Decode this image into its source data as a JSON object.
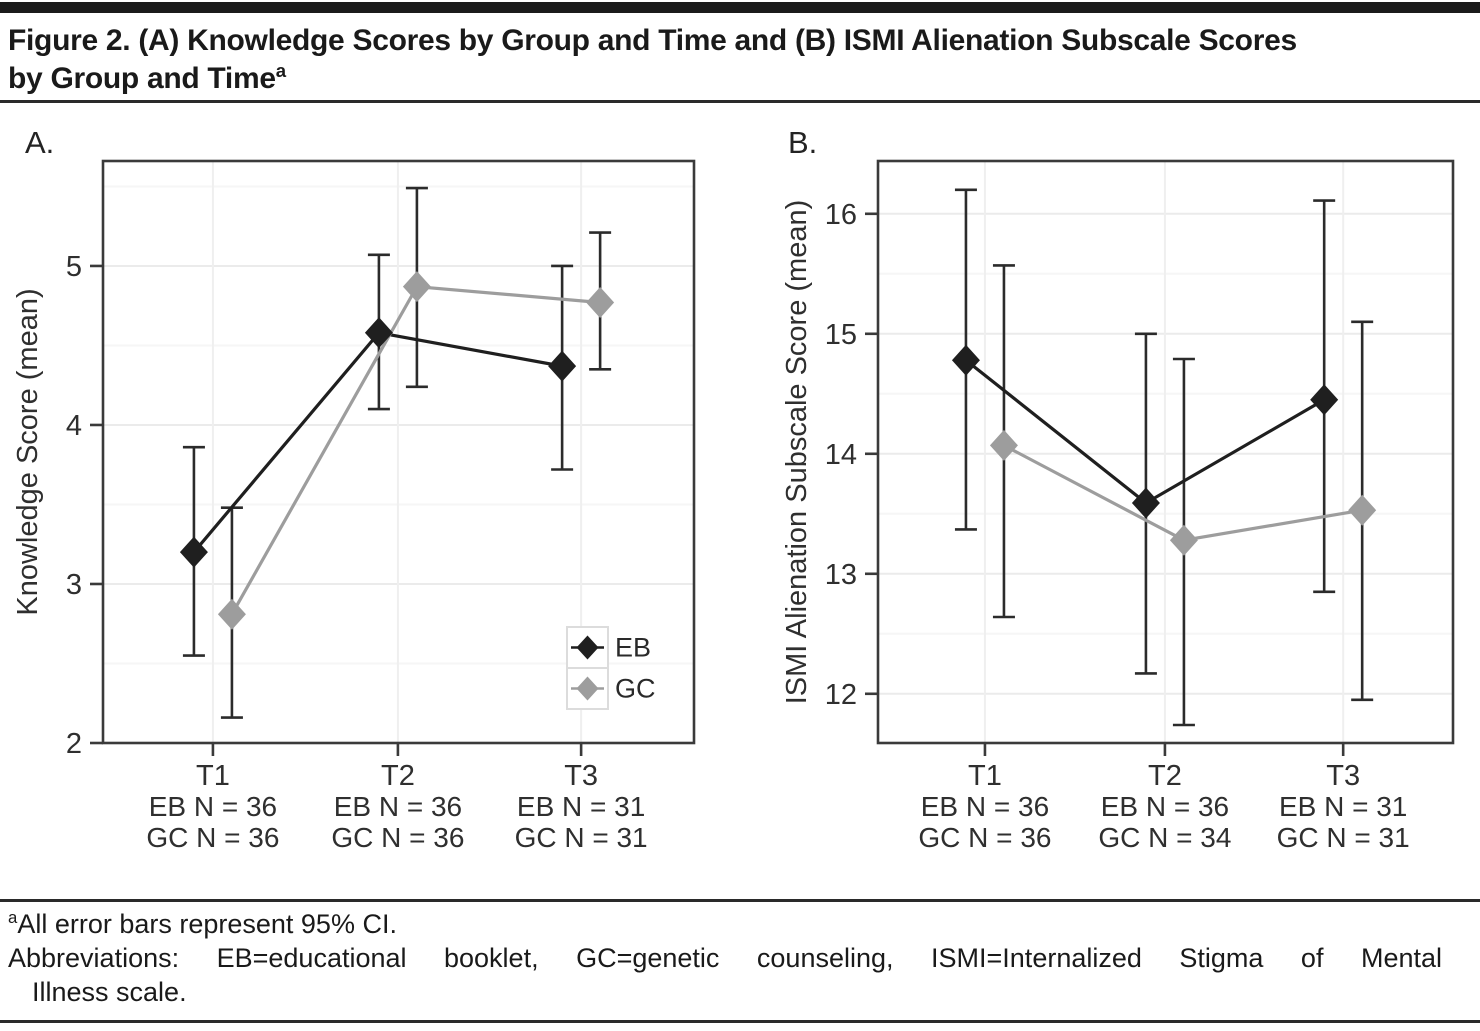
{
  "title": {
    "line1": "Figure 2. (A) Knowledge Scores by Group and Time and (B) ISMI Alienation Subscale Scores",
    "line2": "by Group and Time",
    "superscript": "a"
  },
  "legend": {
    "items": [
      {
        "label": "EB",
        "color": "#1f1f1f"
      },
      {
        "label": "GC",
        "color": "#9d9d9d"
      }
    ]
  },
  "colors": {
    "eb": "#1f1f1f",
    "gc": "#9d9d9d",
    "error_bar": "#2b2b2b",
    "plot_border": "#3a3a3a",
    "grid_major": "#ebebeb",
    "grid_minor": "#f6f6f6",
    "grid_vertical": "#efefef",
    "tick_text": "#2f2f2f"
  },
  "chart_data": [
    {
      "type": "line",
      "panel_label": "A.",
      "ylabel": "Knowledge Score (mean)",
      "categories": [
        "T1",
        "T2",
        "T3"
      ],
      "category_sublabels": [
        [
          "EB N = 36",
          "GC N = 36"
        ],
        [
          "EB N = 36",
          "GC N = 36"
        ],
        [
          "EB N = 31",
          "GC N = 31"
        ]
      ],
      "yticks": [
        2,
        3,
        4,
        5
      ],
      "ylim": [
        2.0,
        5.66
      ],
      "grid": true,
      "show_legend": true,
      "legend_position": "bottom-right-inside",
      "series": [
        {
          "name": "EB",
          "color": "#1f1f1f",
          "marker": "diamond",
          "values": [
            3.2,
            4.58,
            4.37
          ],
          "ci_low": [
            2.55,
            4.1,
            3.72
          ],
          "ci_high": [
            3.86,
            5.07,
            5.0
          ]
        },
        {
          "name": "GC",
          "color": "#9d9d9d",
          "marker": "diamond",
          "values": [
            2.81,
            4.87,
            4.77
          ],
          "ci_low": [
            2.16,
            4.24,
            4.35
          ],
          "ci_high": [
            3.48,
            5.49,
            5.21
          ]
        }
      ]
    },
    {
      "type": "line",
      "panel_label": "B.",
      "ylabel": "ISMI Alienation Subscale Score (mean)",
      "categories": [
        "T1",
        "T2",
        "T3"
      ],
      "category_sublabels": [
        [
          "EB N = 36",
          "GC N = 36"
        ],
        [
          "EB N = 36",
          "GC N = 34"
        ],
        [
          "EB N = 31",
          "GC N = 31"
        ]
      ],
      "yticks": [
        12,
        13,
        14,
        15,
        16
      ],
      "ylim": [
        11.59,
        16.44
      ],
      "grid": true,
      "show_legend": false,
      "series": [
        {
          "name": "EB",
          "color": "#1f1f1f",
          "marker": "diamond",
          "values": [
            14.78,
            13.59,
            14.45
          ],
          "ci_low": [
            13.37,
            12.17,
            12.85
          ],
          "ci_high": [
            16.2,
            15.0,
            16.11
          ]
        },
        {
          "name": "GC",
          "color": "#9d9d9d",
          "marker": "diamond",
          "values": [
            14.07,
            13.28,
            13.53
          ],
          "ci_low": [
            12.64,
            11.74,
            11.95
          ],
          "ci_high": [
            15.57,
            14.79,
            15.1
          ]
        }
      ]
    }
  ],
  "footnote": {
    "superscript": "a",
    "ci_note": "All error bars represent 95% CI.",
    "abbreviations_line1": "Abbreviations: EB=educational booklet, GC=genetic counseling, ISMI=Internalized Stigma of Mental",
    "abbreviations_line2": "Illness scale."
  }
}
